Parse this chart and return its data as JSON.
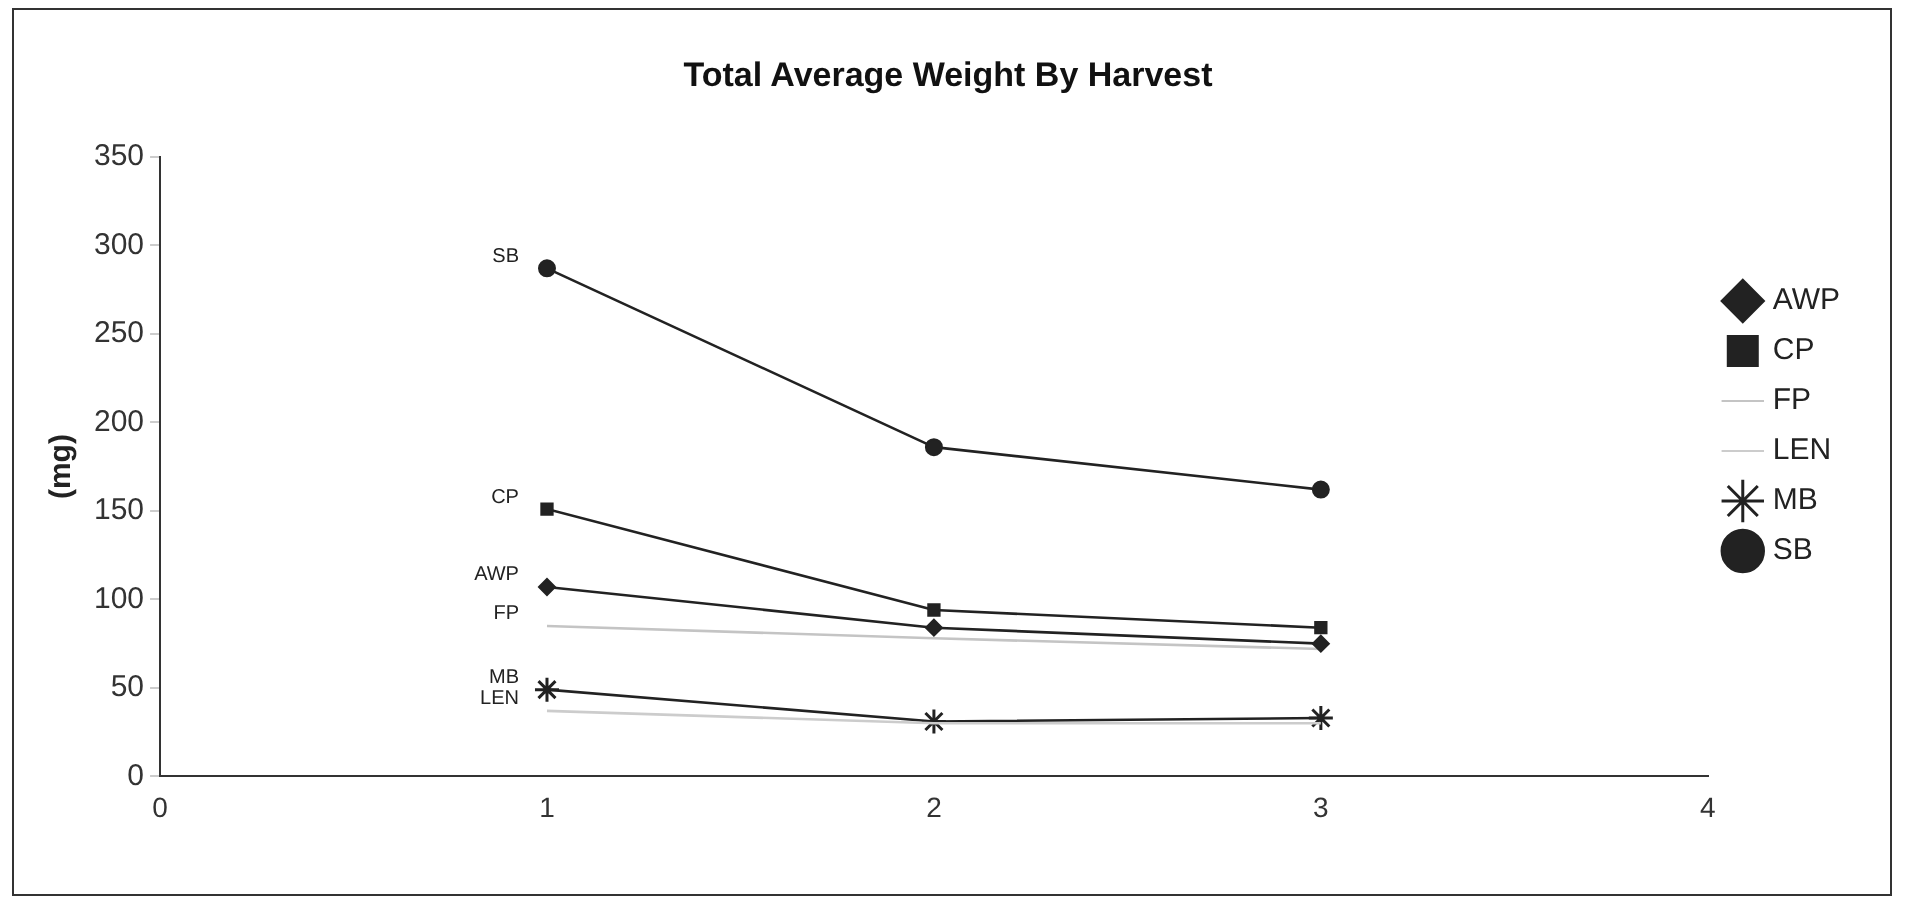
{
  "chart_data": {
    "type": "line",
    "title": "Total Average Weight By Harvest",
    "ylabel": "(mg)",
    "x": [
      1,
      2,
      3
    ],
    "xlim": [
      0,
      4
    ],
    "xticks": [
      0,
      1,
      2,
      3,
      4
    ],
    "ylim": [
      0,
      350
    ],
    "yticks": [
      0,
      50,
      100,
      150,
      200,
      250,
      300,
      350
    ],
    "grid": false,
    "legend": "right",
    "line_style": "solid",
    "series": [
      {
        "name": "AWP",
        "color": "#222222",
        "marker": "diamond",
        "values": [
          107,
          84,
          75
        ]
      },
      {
        "name": "CP",
        "color": "#222222",
        "marker": "square",
        "values": [
          151,
          94,
          84
        ]
      },
      {
        "name": "FP",
        "color": "#c4c4c4",
        "marker": "none",
        "values": [
          85,
          78,
          72
        ]
      },
      {
        "name": "LEN",
        "color": "#cccccc",
        "marker": "none",
        "values": [
          37,
          30,
          30
        ]
      },
      {
        "name": "MB",
        "color": "#222222",
        "marker": "cross",
        "values": [
          49,
          31,
          33
        ]
      },
      {
        "name": "SB",
        "color": "#222222",
        "marker": "circle",
        "values": [
          287,
          186,
          162
        ]
      }
    ]
  }
}
